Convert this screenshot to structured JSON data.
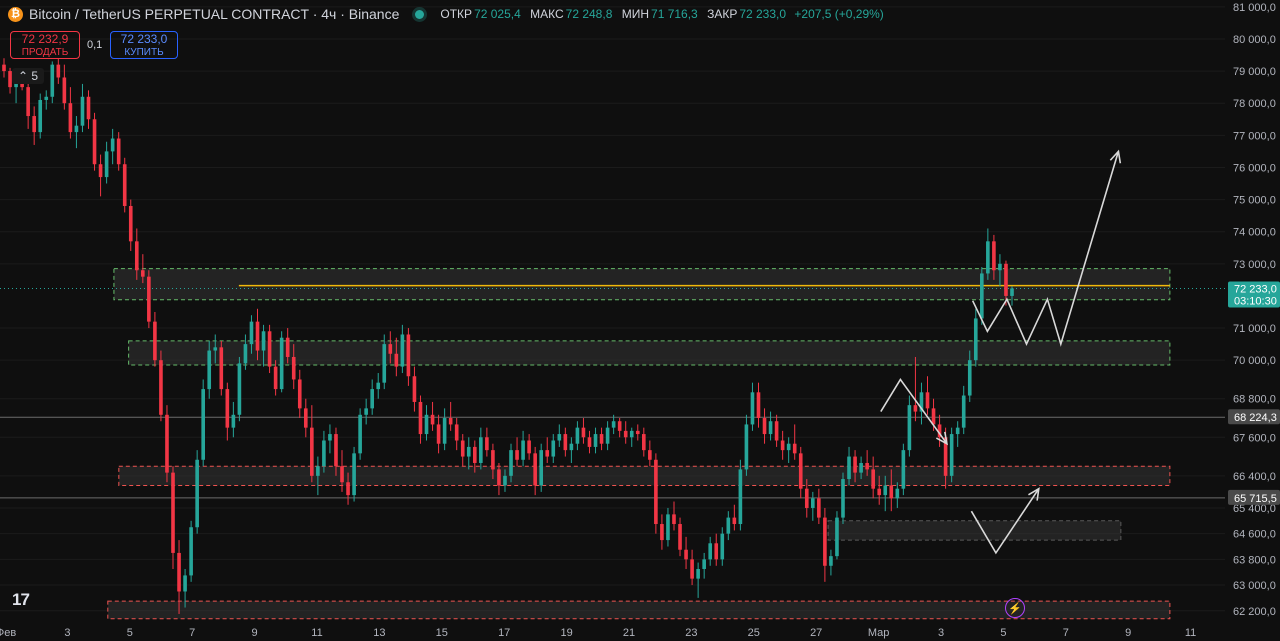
{
  "header": {
    "title": "Bitcoin / TetherUS PERPETUAL CONTRACT · 4ч · Binance",
    "ohlc": [
      {
        "label": "ОТКР",
        "value": "72 025,4"
      },
      {
        "label": "МАКС",
        "value": "72 248,8"
      },
      {
        "label": "МИН",
        "value": "71 716,3"
      },
      {
        "label": "ЗАКР",
        "value": "72 233,0"
      }
    ],
    "change": "+207,5 (+0,29%)"
  },
  "trade": {
    "sell_price": "72 232,9",
    "sell_label": "ПРОДАТЬ",
    "spread": "0,1",
    "buy_price": "72 233,0",
    "buy_label": "КУПИТЬ"
  },
  "indicators_toggle": "5",
  "logo_text": "17",
  "colors": {
    "up": "#26a69a",
    "down": "#f23645",
    "bg": "#0f0f0f",
    "zone_green": "#66bb6a",
    "zone_red": "#ef5350",
    "price_line": "#f0b90b"
  },
  "chart_data": {
    "type": "candlestick",
    "ylim": [
      61850,
      81150
    ],
    "y_ticks": [
      "62 200,0",
      "63 000,0",
      "63 800,0",
      "64 600,0",
      "65 400,0",
      "66 400,0",
      "67 600,0",
      "68 800,0",
      "70 000,0",
      "71 000,0",
      "73 000,0",
      "74 000,0",
      "75 000,0",
      "76 000,0",
      "77 000,0",
      "78 000,0",
      "79 000,0",
      "80 000,0",
      "81 000,0"
    ],
    "y_tick_values": [
      62200,
      63000,
      63800,
      64600,
      65400,
      66400,
      67600,
      68800,
      70000,
      71000,
      73000,
      74000,
      75000,
      76000,
      77000,
      78000,
      79000,
      80000,
      81000
    ],
    "x_ticks": [
      "Фев",
      "3",
      "5",
      "7",
      "9",
      "11",
      "13",
      "15",
      "17",
      "19",
      "21",
      "23",
      "25",
      "27",
      "Мар",
      "3",
      "5",
      "7",
      "9",
      "11"
    ],
    "price_badges": [
      {
        "price": "72 233,0",
        "sub": "03:10:30",
        "value": 72233,
        "style": "current"
      },
      {
        "price": "68 224,3",
        "value": 68224,
        "style": "line"
      },
      {
        "price": "65 715,5",
        "value": 65715,
        "style": "line"
      }
    ],
    "current_price": 72233,
    "horizontal_lines": [
      68224,
      65715
    ],
    "zones": [
      {
        "x": [
          0.093,
          0.955
        ],
        "y": [
          71880,
          72850
        ],
        "color": "green"
      },
      {
        "x": [
          0.105,
          0.955
        ],
        "y": [
          69850,
          70600
        ],
        "color": "green"
      },
      {
        "x": [
          0.097,
          0.955
        ],
        "y": [
          66100,
          66700
        ],
        "color": "red"
      },
      {
        "x": [
          0.676,
          0.915
        ],
        "y": [
          64400,
          65000
        ],
        "color": "gray"
      },
      {
        "x": [
          0.088,
          0.955
        ],
        "y": [
          61950,
          62500
        ],
        "color": "red"
      }
    ],
    "orange_line": {
      "x": [
        0.195,
        0.955
      ],
      "y": 72320
    },
    "arrows": [
      [
        [
          0.794,
          71850
        ],
        [
          0.806,
          70900
        ],
        [
          0.822,
          71900
        ],
        [
          0.838,
          70500
        ],
        [
          0.855,
          71900
        ],
        [
          0.866,
          70500
        ],
        [
          0.913,
          76500
        ]
      ],
      [
        [
          0.719,
          68400
        ],
        [
          0.735,
          69400
        ],
        [
          0.773,
          67400
        ]
      ],
      [
        [
          0.793,
          65300
        ],
        [
          0.813,
          64000
        ],
        [
          0.848,
          66000
        ]
      ]
    ],
    "candles": [
      [
        79200,
        79400,
        78800,
        79000
      ],
      [
        79000,
        79100,
        78300,
        78500
      ],
      [
        78500,
        78800,
        78000,
        78700
      ],
      [
        78700,
        78900,
        78400,
        78500
      ],
      [
        78500,
        78800,
        77200,
        77600
      ],
      [
        77600,
        77900,
        76700,
        77100
      ],
      [
        77100,
        78300,
        76900,
        78100
      ],
      [
        78100,
        78400,
        77800,
        78200
      ],
      [
        78200,
        79300,
        78000,
        79200
      ],
      [
        79200,
        79400,
        78600,
        78800
      ],
      [
        78800,
        79200,
        77800,
        78000
      ],
      [
        78000,
        78500,
        76900,
        77100
      ],
      [
        77100,
        77600,
        76600,
        77300
      ],
      [
        77300,
        78600,
        77100,
        78200
      ],
      [
        78200,
        78400,
        77200,
        77500
      ],
      [
        77500,
        77700,
        75900,
        76100
      ],
      [
        76100,
        76400,
        75100,
        75700
      ],
      [
        75700,
        76800,
        75500,
        76500
      ],
      [
        76500,
        77200,
        76100,
        76900
      ],
      [
        76900,
        77100,
        75900,
        76100
      ],
      [
        76100,
        76300,
        74600,
        74800
      ],
      [
        74800,
        75000,
        73400,
        73700
      ],
      [
        73700,
        74100,
        72500,
        72800
      ],
      [
        72800,
        73300,
        72400,
        72600
      ],
      [
        72600,
        72800,
        71000,
        71200
      ],
      [
        71200,
        71500,
        69800,
        70000
      ],
      [
        70000,
        70300,
        68100,
        68300
      ],
      [
        68300,
        68600,
        66200,
        66500
      ],
      [
        66500,
        66700,
        63500,
        64000
      ],
      [
        64000,
        64400,
        62100,
        62800
      ],
      [
        62800,
        63500,
        62300,
        63300
      ],
      [
        63300,
        65000,
        63100,
        64800
      ],
      [
        64800,
        67200,
        64600,
        66900
      ],
      [
        66900,
        69400,
        66700,
        69100
      ],
      [
        69100,
        70600,
        68800,
        70300
      ],
      [
        70300,
        70800,
        69900,
        70400
      ],
      [
        70400,
        70600,
        68900,
        69100
      ],
      [
        69100,
        69300,
        67500,
        67900
      ],
      [
        67900,
        68700,
        67600,
        68300
      ],
      [
        68300,
        70100,
        68100,
        69900
      ],
      [
        69900,
        70800,
        69700,
        70500
      ],
      [
        70500,
        71400,
        70200,
        71200
      ],
      [
        71200,
        71600,
        70000,
        70300
      ],
      [
        70300,
        71100,
        69800,
        70900
      ],
      [
        70900,
        71100,
        69600,
        69800
      ],
      [
        69800,
        70000,
        68900,
        69100
      ],
      [
        69100,
        70900,
        69000,
        70700
      ],
      [
        70700,
        71000,
        69900,
        70100
      ],
      [
        70100,
        70500,
        69100,
        69400
      ],
      [
        69400,
        69700,
        68200,
        68500
      ],
      [
        68500,
        68800,
        67600,
        67900
      ],
      [
        67900,
        68600,
        66200,
        66400
      ],
      [
        66400,
        67000,
        65800,
        66700
      ],
      [
        66700,
        67800,
        66500,
        67500
      ],
      [
        67500,
        68000,
        67100,
        67700
      ],
      [
        67700,
        67900,
        66400,
        66700
      ],
      [
        66700,
        67200,
        65900,
        66200
      ],
      [
        66200,
        66500,
        65500,
        65800
      ],
      [
        65800,
        67300,
        65600,
        67100
      ],
      [
        67100,
        68500,
        66900,
        68300
      ],
      [
        68300,
        68800,
        68000,
        68500
      ],
      [
        68500,
        69400,
        68300,
        69100
      ],
      [
        69100,
        69600,
        68800,
        69300
      ],
      [
        69300,
        70800,
        69100,
        70500
      ],
      [
        70500,
        70900,
        69900,
        70200
      ],
      [
        70200,
        70700,
        69500,
        69800
      ],
      [
        69800,
        71100,
        69600,
        70800
      ],
      [
        70800,
        71000,
        69200,
        69500
      ],
      [
        69500,
        69800,
        68400,
        68700
      ],
      [
        68700,
        68900,
        67400,
        67700
      ],
      [
        67700,
        68600,
        67500,
        68300
      ],
      [
        68300,
        68700,
        67800,
        68000
      ],
      [
        68000,
        68300,
        67100,
        67400
      ],
      [
        67400,
        68500,
        67200,
        68200
      ],
      [
        68200,
        68700,
        67800,
        68000
      ],
      [
        68000,
        68200,
        67200,
        67500
      ],
      [
        67500,
        67700,
        66700,
        67000
      ],
      [
        67000,
        67600,
        66600,
        67300
      ],
      [
        67300,
        67500,
        66500,
        66800
      ],
      [
        66800,
        67900,
        66600,
        67600
      ],
      [
        67600,
        67900,
        67000,
        67200
      ],
      [
        67200,
        67400,
        66300,
        66600
      ],
      [
        66600,
        66800,
        65800,
        66100
      ],
      [
        66100,
        66600,
        65900,
        66400
      ],
      [
        66400,
        67400,
        66200,
        67200
      ],
      [
        67200,
        67600,
        66700,
        66900
      ],
      [
        66900,
        67800,
        66700,
        67500
      ],
      [
        67500,
        67700,
        66900,
        67100
      ],
      [
        67100,
        67300,
        65800,
        66100
      ],
      [
        66100,
        67400,
        65900,
        67200
      ],
      [
        67200,
        67600,
        66800,
        67000
      ],
      [
        67000,
        67700,
        66800,
        67500
      ],
      [
        67500,
        68000,
        67300,
        67700
      ],
      [
        67700,
        67900,
        67000,
        67200
      ],
      [
        67200,
        67600,
        66800,
        67400
      ],
      [
        67400,
        68100,
        67200,
        67900
      ],
      [
        67900,
        68200,
        67400,
        67600
      ],
      [
        67600,
        67800,
        67100,
        67300
      ],
      [
        67300,
        67900,
        67100,
        67700
      ],
      [
        67700,
        67900,
        67200,
        67400
      ],
      [
        67400,
        68100,
        67200,
        67900
      ],
      [
        67900,
        68300,
        67700,
        68100
      ],
      [
        68100,
        68200,
        67600,
        67800
      ],
      [
        67800,
        68100,
        67400,
        67600
      ],
      [
        67600,
        67900,
        67300,
        67800
      ],
      [
        67800,
        68000,
        67500,
        67700
      ],
      [
        67700,
        67900,
        67000,
        67200
      ],
      [
        67200,
        67500,
        66700,
        66900
      ],
      [
        66900,
        67100,
        64600,
        64900
      ],
      [
        64900,
        65200,
        64100,
        64400
      ],
      [
        64400,
        65400,
        64200,
        65200
      ],
      [
        65200,
        65600,
        64700,
        64900
      ],
      [
        64900,
        65100,
        63900,
        64100
      ],
      [
        64100,
        64500,
        63500,
        63800
      ],
      [
        63800,
        64100,
        63000,
        63200
      ],
      [
        63200,
        63700,
        62600,
        63500
      ],
      [
        63500,
        64000,
        63200,
        63800
      ],
      [
        63800,
        64500,
        63600,
        64300
      ],
      [
        64300,
        64600,
        63600,
        63800
      ],
      [
        63800,
        64800,
        63600,
        64600
      ],
      [
        64600,
        65300,
        64400,
        65100
      ],
      [
        65100,
        65500,
        64700,
        64900
      ],
      [
        64900,
        66900,
        64700,
        66600
      ],
      [
        66600,
        68300,
        66400,
        68000
      ],
      [
        68000,
        69300,
        67800,
        69000
      ],
      [
        69000,
        69300,
        67900,
        68200
      ],
      [
        68200,
        68500,
        67400,
        67700
      ],
      [
        67700,
        68400,
        67500,
        68100
      ],
      [
        68100,
        68300,
        67300,
        67500
      ],
      [
        67500,
        67800,
        66900,
        67200
      ],
      [
        67200,
        67600,
        66800,
        67400
      ],
      [
        67400,
        68000,
        66900,
        67100
      ],
      [
        67100,
        67300,
        65700,
        66000
      ],
      [
        66000,
        66300,
        65100,
        65400
      ],
      [
        65400,
        65900,
        65000,
        65700
      ],
      [
        65700,
        66000,
        64900,
        65100
      ],
      [
        65100,
        65400,
        63100,
        63600
      ],
      [
        63600,
        64100,
        63300,
        63900
      ],
      [
        63900,
        65300,
        63800,
        65100
      ],
      [
        65100,
        66500,
        64900,
        66300
      ],
      [
        66300,
        67300,
        66100,
        67000
      ],
      [
        67000,
        67200,
        66200,
        66500
      ],
      [
        66500,
        67000,
        66300,
        66800
      ],
      [
        66800,
        67200,
        66400,
        66600
      ],
      [
        66600,
        67000,
        65700,
        66000
      ],
      [
        66000,
        66400,
        65500,
        65800
      ],
      [
        65800,
        66400,
        65300,
        66100
      ],
      [
        66100,
        66600,
        65300,
        65700
      ],
      [
        65700,
        66200,
        65400,
        66000
      ],
      [
        66000,
        67400,
        65800,
        67200
      ],
      [
        67200,
        68900,
        67000,
        68600
      ],
      [
        68600,
        70100,
        68100,
        68400
      ],
      [
        68400,
        69300,
        68000,
        69000
      ],
      [
        69000,
        69500,
        68300,
        68500
      ],
      [
        68500,
        68800,
        67800,
        68000
      ],
      [
        68000,
        68300,
        67300,
        67600
      ],
      [
        67600,
        67900,
        66000,
        66400
      ],
      [
        66400,
        67900,
        66200,
        67700
      ],
      [
        67700,
        68100,
        67300,
        67900
      ],
      [
        67900,
        69200,
        67700,
        68900
      ],
      [
        68900,
        70300,
        68700,
        70000
      ],
      [
        70000,
        71600,
        69800,
        71300
      ],
      [
        71300,
        72900,
        71100,
        72700
      ],
      [
        72700,
        74100,
        72500,
        73700
      ],
      [
        73700,
        73900,
        72500,
        72800
      ],
      [
        72800,
        73300,
        72300,
        73000
      ],
      [
        73000,
        73100,
        71700,
        72000
      ],
      [
        72000,
        72300,
        71700,
        72233
      ]
    ]
  }
}
